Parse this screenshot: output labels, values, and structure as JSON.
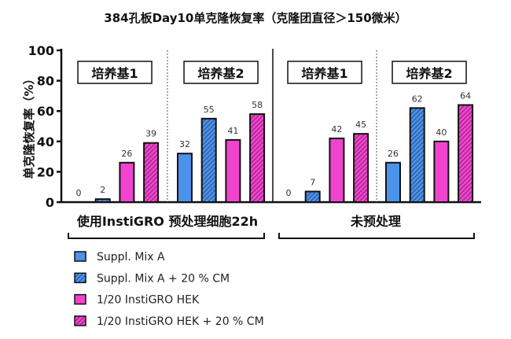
{
  "chart_data": {
    "type": "bar",
    "title": "384孔板Day10单克隆恢复率（克隆团直径＞150微米）",
    "ylabel": "单克隆恢复率（%）",
    "ylim": [
      0,
      100
    ],
    "yticks": [
      "0",
      "20",
      "40",
      "60",
      "80",
      "100"
    ],
    "groups": [
      {
        "label": "使用InstiGRO 预处理细胞22h",
        "subgroups": [
          {
            "label": "培养基1",
            "values": [
              0,
              2,
              26,
              39
            ]
          },
          {
            "label": "培养基2",
            "values": [
              32,
              55,
              41,
              58
            ]
          }
        ]
      },
      {
        "label": "未预处理",
        "subgroups": [
          {
            "label": "培养基1",
            "values": [
              0,
              7,
              42,
              45
            ]
          },
          {
            "label": "培养基2",
            "values": [
              26,
              62,
              40,
              64
            ]
          }
        ]
      }
    ],
    "series": [
      {
        "name": "Suppl. Mix A",
        "color": "#4b92ea",
        "hatched": false
      },
      {
        "name": "Suppl. Mix A + 20 % CM",
        "color": "#4b92ea",
        "hatched": true
      },
      {
        "name": "1/20 InstiGRO HEK",
        "color": "#f044cf",
        "hatched": false
      },
      {
        "name": "1/20 InstiGRO HEK + 20 % CM",
        "color": "#f044cf",
        "hatched": true
      }
    ],
    "legend_position": "bottom-left"
  }
}
